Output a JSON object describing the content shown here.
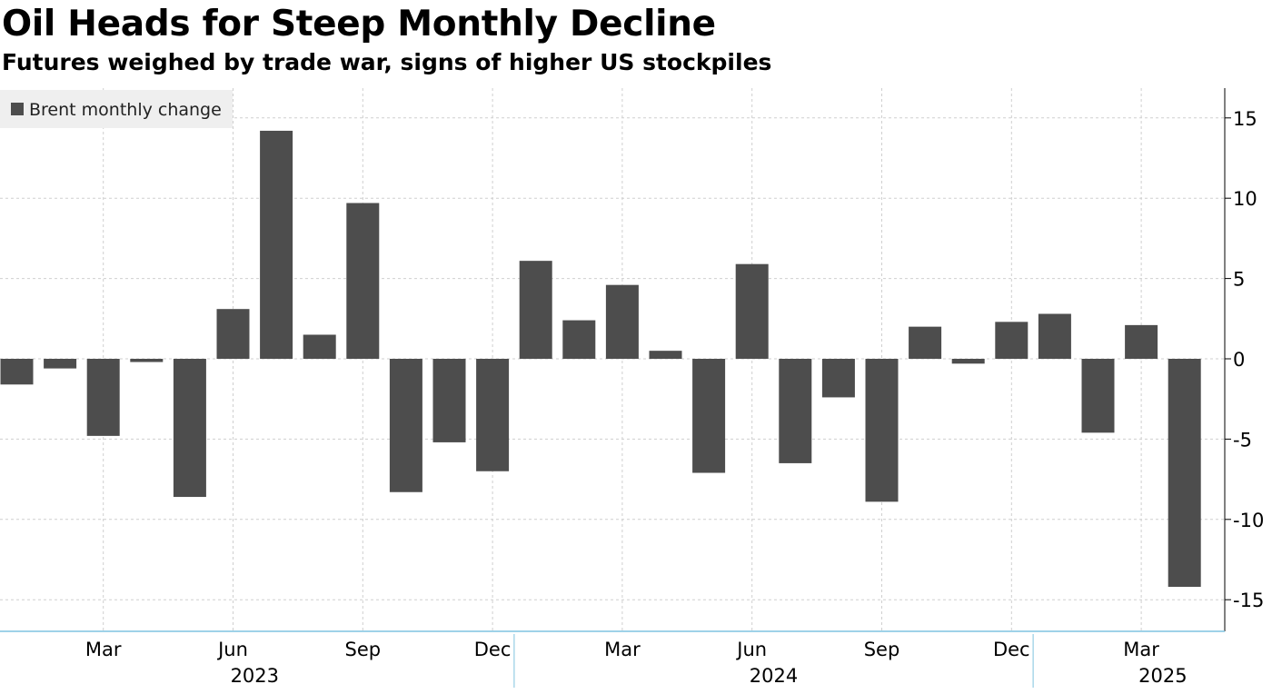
{
  "header": {
    "title": "Oil Heads for Steep Monthly Decline",
    "subtitle": "Futures weighed by trade war, signs of higher US stockpiles"
  },
  "colors": {
    "bar": "#4d4d4d",
    "grid": "#cfcfcf",
    "axis_line": "#7fc3e0",
    "legend_bg": "#efefef"
  },
  "chart_data": {
    "type": "bar",
    "title": "Oil Heads for Steep Monthly Decline",
    "subtitle": "Futures weighed by trade war, signs of higher US stockpiles",
    "legend": [
      "Brent monthly change"
    ],
    "legend_position": "top-left",
    "y_axis_side": "right",
    "ylim": [
      -17,
      17
    ],
    "yticks": [
      15,
      10,
      5,
      0,
      -5,
      -10,
      -15
    ],
    "ytick_labels": [
      "15",
      "10",
      "5",
      "0",
      "-5",
      "-10",
      "-15"
    ],
    "grid": true,
    "categories": [
      "Jan 2023",
      "Feb 2023",
      "Mar 2023",
      "Apr 2023",
      "May 2023",
      "Jun 2023",
      "Jul 2023",
      "Aug 2023",
      "Sep 2023",
      "Oct 2023",
      "Nov 2023",
      "Dec 2023",
      "Jan 2024",
      "Feb 2024",
      "Mar 2024",
      "Apr 2024",
      "May 2024",
      "Jun 2024",
      "Jul 2024",
      "Aug 2024",
      "Sep 2024",
      "Oct 2024",
      "Nov 2024",
      "Dec 2024",
      "Jan 2025",
      "Feb 2025",
      "Mar 2025",
      "Apr 2025"
    ],
    "series": [
      {
        "name": "Brent monthly change",
        "values": [
          -1.6,
          -0.6,
          -4.8,
          -0.2,
          -8.6,
          3.1,
          14.2,
          1.5,
          9.7,
          -8.3,
          -5.2,
          -7.0,
          6.1,
          2.4,
          4.6,
          0.5,
          -7.1,
          5.9,
          -6.5,
          -2.4,
          -8.9,
          2.0,
          -0.3,
          2.3,
          2.8,
          -4.6,
          2.1,
          -14.2
        ]
      }
    ],
    "x_tick_labels": [
      {
        "index": 2,
        "label": "Mar"
      },
      {
        "index": 5,
        "label": "Jun"
      },
      {
        "index": 8,
        "label": "Sep"
      },
      {
        "index": 11,
        "label": "Dec"
      },
      {
        "index": 14,
        "label": "Mar"
      },
      {
        "index": 17,
        "label": "Jun"
      },
      {
        "index": 20,
        "label": "Sep"
      },
      {
        "index": 23,
        "label": "Dec"
      },
      {
        "index": 26,
        "label": "Mar"
      }
    ],
    "year_labels": [
      {
        "label": "2023",
        "center_index": 5.5
      },
      {
        "label": "2024",
        "center_index": 17.5
      },
      {
        "label": "2025",
        "center_index": 26.5
      }
    ],
    "year_separators": [
      11.5,
      23.5
    ]
  }
}
